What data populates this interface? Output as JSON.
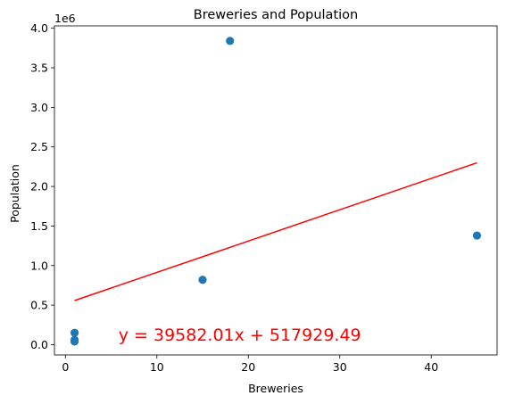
{
  "chart_data": {
    "type": "scatter",
    "title": "Breweries and Population",
    "xlabel": "Breweries",
    "ylabel": "Population",
    "y_offset_label": "1e6",
    "xlim": [
      -1.2,
      47.2
    ],
    "ylim": [
      -0.13,
      4.03
    ],
    "x_ticks": [
      0,
      10,
      20,
      30,
      40
    ],
    "x_tick_labels": [
      "0",
      "10",
      "20",
      "30",
      "40"
    ],
    "y_ticks": [
      0.0,
      0.5,
      1.0,
      1.5,
      2.0,
      2.5,
      3.0,
      3.5,
      4.0
    ],
    "y_tick_labels": [
      "0.0",
      "0.5",
      "1.0",
      "1.5",
      "2.0",
      "2.5",
      "3.0",
      "3.5",
      "4.0"
    ],
    "grid": false,
    "point_color": "#1f77b4",
    "line_color": "#ff0000",
    "points": [
      {
        "x": 1,
        "y": 0.04
      },
      {
        "x": 1,
        "y": 0.06
      },
      {
        "x": 1,
        "y": 0.15
      },
      {
        "x": 15,
        "y": 0.82
      },
      {
        "x": 18,
        "y": 3.84
      },
      {
        "x": 45,
        "y": 1.38
      }
    ],
    "regression": {
      "slope": 39582.01,
      "intercept": 517929.49,
      "x_range": [
        1,
        45
      ],
      "equation": "y = 39582.01x + 517929.49",
      "equation_x": 5.8,
      "equation_y": 0.05
    }
  }
}
